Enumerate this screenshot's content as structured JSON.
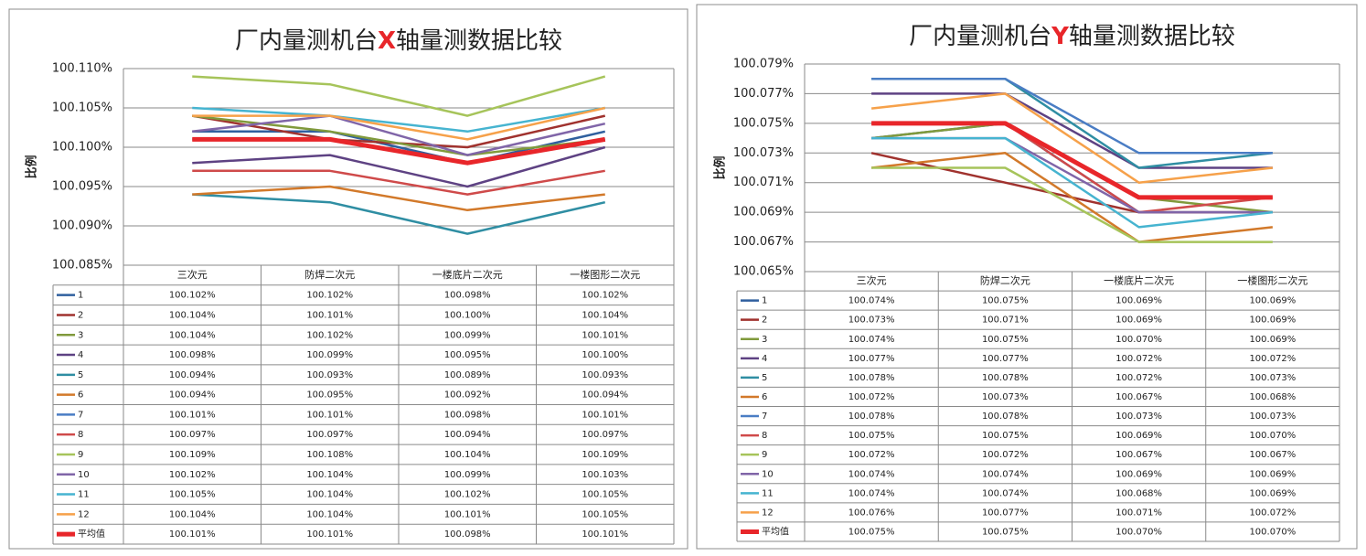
{
  "chart_data": [
    {
      "type": "line",
      "title": [
        {
          "text": "厂内量测机台"
        },
        {
          "text": "X",
          "color": "#e8262a"
        },
        {
          "text": "轴量测数据比较"
        }
      ],
      "y_label": "比例",
      "categories": [
        "三次元",
        "防焊二次元",
        "一楼底片二次元",
        "一楼图形二次元"
      ],
      "ylim": [
        100.085,
        100.11
      ],
      "yticks": [
        {
          "value": 100.085,
          "label": "100.085%"
        },
        {
          "value": 100.09,
          "label": "100.090%"
        },
        {
          "value": 100.095,
          "label": "100.095%"
        },
        {
          "value": 100.1,
          "label": "100.100%"
        },
        {
          "value": 100.105,
          "label": "100.105%"
        },
        {
          "value": 100.11,
          "label": "100.110%"
        }
      ],
      "grid": true,
      "series": [
        {
          "name": "1",
          "color": "#2f5f9e",
          "values": [
            100.102,
            100.102,
            100.098,
            100.102
          ],
          "value_labels": [
            "100.102%",
            "100.102%",
            "100.098%",
            "100.102%"
          ]
        },
        {
          "name": "2",
          "color": "#a0322e",
          "values": [
            100.104,
            100.101,
            100.1,
            100.104
          ],
          "value_labels": [
            "100.104%",
            "100.101%",
            "100.100%",
            "100.104%"
          ]
        },
        {
          "name": "3",
          "color": "#809a3c",
          "values": [
            100.104,
            100.102,
            100.099,
            100.101
          ],
          "value_labels": [
            "100.104%",
            "100.102%",
            "100.099%",
            "100.101%"
          ]
        },
        {
          "name": "4",
          "color": "#5e4283",
          "values": [
            100.098,
            100.099,
            100.095,
            100.1
          ],
          "value_labels": [
            "100.098%",
            "100.099%",
            "100.095%",
            "100.100%"
          ]
        },
        {
          "name": "5",
          "color": "#2f8ea3",
          "values": [
            100.094,
            100.093,
            100.089,
            100.093
          ],
          "value_labels": [
            "100.094%",
            "100.093%",
            "100.089%",
            "100.093%"
          ]
        },
        {
          "name": "6",
          "color": "#d2792a",
          "values": [
            100.094,
            100.095,
            100.092,
            100.094
          ],
          "value_labels": [
            "100.094%",
            "100.095%",
            "100.092%",
            "100.094%"
          ]
        },
        {
          "name": "7",
          "color": "#4a7dc4",
          "values": [
            100.101,
            100.101,
            100.098,
            100.101
          ],
          "value_labels": [
            "100.101%",
            "100.101%",
            "100.098%",
            "100.101%"
          ]
        },
        {
          "name": "8",
          "color": "#cf4a4a",
          "values": [
            100.097,
            100.097,
            100.094,
            100.097
          ],
          "value_labels": [
            "100.097%",
            "100.097%",
            "100.094%",
            "100.097%"
          ]
        },
        {
          "name": "9",
          "color": "#a6c45a",
          "values": [
            100.109,
            100.108,
            100.104,
            100.109
          ],
          "value_labels": [
            "100.109%",
            "100.108%",
            "100.104%",
            "100.109%"
          ]
        },
        {
          "name": "10",
          "color": "#8065a8",
          "values": [
            100.102,
            100.104,
            100.099,
            100.103
          ],
          "value_labels": [
            "100.102%",
            "100.104%",
            "100.099%",
            "100.103%"
          ]
        },
        {
          "name": "11",
          "color": "#46b4d0",
          "values": [
            100.105,
            100.104,
            100.102,
            100.105
          ],
          "value_labels": [
            "100.105%",
            "100.104%",
            "100.102%",
            "100.105%"
          ]
        },
        {
          "name": "12",
          "color": "#f6a14a",
          "values": [
            100.104,
            100.104,
            100.101,
            100.105
          ],
          "value_labels": [
            "100.104%",
            "100.104%",
            "100.101%",
            "100.105%"
          ]
        },
        {
          "name": "平均值",
          "color": "#e8262a",
          "line_width": 5,
          "values": [
            100.101,
            100.101,
            100.098,
            100.101
          ],
          "value_labels": [
            "100.101%",
            "100.101%",
            "100.098%",
            "100.101%"
          ]
        }
      ]
    },
    {
      "type": "line",
      "title": [
        {
          "text": "厂内量测机台"
        },
        {
          "text": "Y",
          "color": "#e8262a"
        },
        {
          "text": "轴量测数据比较"
        }
      ],
      "y_label": "比例",
      "categories": [
        "三次元",
        "防焊二次元",
        "一楼底片二次元",
        "一楼图形二次元"
      ],
      "ylim": [
        100.065,
        100.079
      ],
      "yticks": [
        {
          "value": 100.065,
          "label": "100.065%"
        },
        {
          "value": 100.067,
          "label": "100.067%"
        },
        {
          "value": 100.069,
          "label": "100.069%"
        },
        {
          "value": 100.071,
          "label": "100.071%"
        },
        {
          "value": 100.073,
          "label": "100.073%"
        },
        {
          "value": 100.075,
          "label": "100.075%"
        },
        {
          "value": 100.077,
          "label": "100.077%"
        },
        {
          "value": 100.079,
          "label": "100.079%"
        }
      ],
      "grid": true,
      "series": [
        {
          "name": "1",
          "color": "#2f5f9e",
          "values": [
            100.074,
            100.075,
            100.069,
            100.069
          ],
          "value_labels": [
            "100.074%",
            "100.075%",
            "100.069%",
            "100.069%"
          ]
        },
        {
          "name": "2",
          "color": "#a0322e",
          "values": [
            100.073,
            100.071,
            100.069,
            100.069
          ],
          "value_labels": [
            "100.073%",
            "100.071%",
            "100.069%",
            "100.069%"
          ]
        },
        {
          "name": "3",
          "color": "#809a3c",
          "values": [
            100.074,
            100.075,
            100.07,
            100.069
          ],
          "value_labels": [
            "100.074%",
            "100.075%",
            "100.070%",
            "100.069%"
          ]
        },
        {
          "name": "4",
          "color": "#5e4283",
          "values": [
            100.077,
            100.077,
            100.072,
            100.072
          ],
          "value_labels": [
            "100.077%",
            "100.077%",
            "100.072%",
            "100.072%"
          ]
        },
        {
          "name": "5",
          "color": "#2f8ea3",
          "values": [
            100.078,
            100.078,
            100.072,
            100.073
          ],
          "value_labels": [
            "100.078%",
            "100.078%",
            "100.072%",
            "100.073%"
          ]
        },
        {
          "name": "6",
          "color": "#d2792a",
          "values": [
            100.072,
            100.073,
            100.067,
            100.068
          ],
          "value_labels": [
            "100.072%",
            "100.073%",
            "100.067%",
            "100.068%"
          ]
        },
        {
          "name": "7",
          "color": "#4a7dc4",
          "values": [
            100.078,
            100.078,
            100.073,
            100.073
          ],
          "value_labels": [
            "100.078%",
            "100.078%",
            "100.073%",
            "100.073%"
          ]
        },
        {
          "name": "8",
          "color": "#cf4a4a",
          "values": [
            100.075,
            100.075,
            100.069,
            100.07
          ],
          "value_labels": [
            "100.075%",
            "100.075%",
            "100.069%",
            "100.070%"
          ]
        },
        {
          "name": "9",
          "color": "#a6c45a",
          "values": [
            100.072,
            100.072,
            100.067,
            100.067
          ],
          "value_labels": [
            "100.072%",
            "100.072%",
            "100.067%",
            "100.067%"
          ]
        },
        {
          "name": "10",
          "color": "#8065a8",
          "values": [
            100.074,
            100.074,
            100.069,
            100.069
          ],
          "value_labels": [
            "100.074%",
            "100.074%",
            "100.069%",
            "100.069%"
          ]
        },
        {
          "name": "11",
          "color": "#46b4d0",
          "values": [
            100.074,
            100.074,
            100.068,
            100.069
          ],
          "value_labels": [
            "100.074%",
            "100.074%",
            "100.068%",
            "100.069%"
          ]
        },
        {
          "name": "12",
          "color": "#f6a14a",
          "values": [
            100.076,
            100.077,
            100.071,
            100.072
          ],
          "value_labels": [
            "100.076%",
            "100.077%",
            "100.071%",
            "100.072%"
          ]
        },
        {
          "name": "平均值",
          "color": "#e8262a",
          "line_width": 5,
          "values": [
            100.075,
            100.075,
            100.07,
            100.07
          ],
          "value_labels": [
            "100.075%",
            "100.075%",
            "100.070%",
            "100.070%"
          ]
        }
      ]
    }
  ]
}
